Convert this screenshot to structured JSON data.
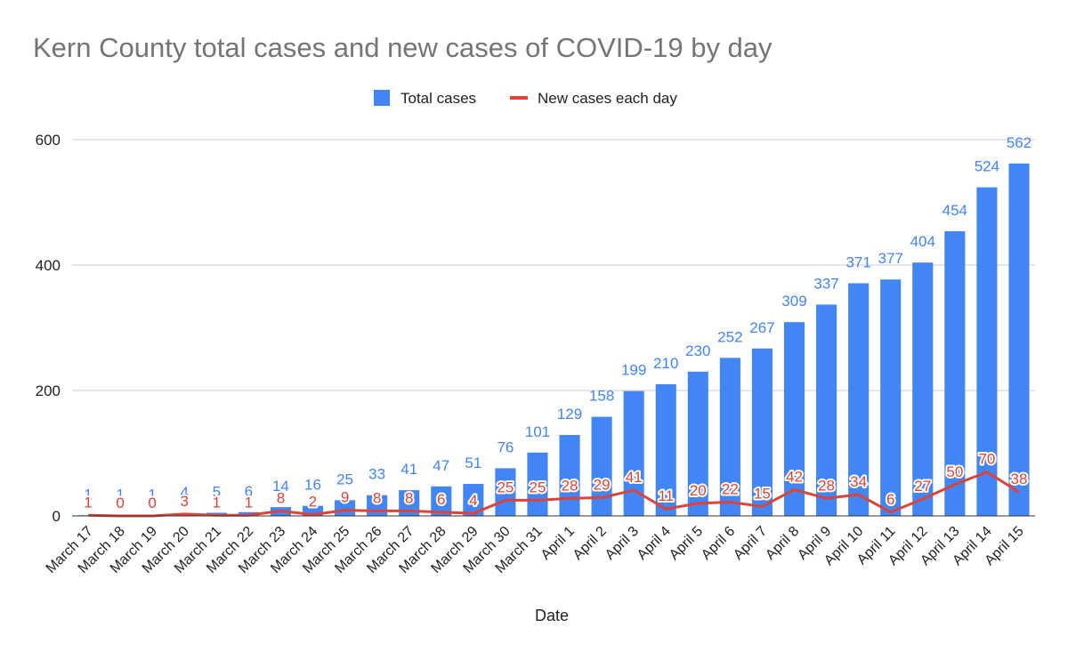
{
  "chart_data": {
    "type": "bar",
    "title": "Kern County total cases and new cases of COVID-19 by day",
    "xlabel": "Date",
    "ylabel": "",
    "ylim": [
      0,
      600
    ],
    "yticks": [
      0,
      200,
      400,
      600
    ],
    "grid": true,
    "legend_position": "top-center",
    "categories": [
      "March 17",
      "March 18",
      "March 19",
      "March 20",
      "March 21",
      "March 22",
      "March 23",
      "March 24",
      "March 25",
      "March 26",
      "March 27",
      "March 28",
      "March 29",
      "March 30",
      "March 31",
      "April 1",
      "April 2",
      "April 3",
      "April 4",
      "April 5",
      "April 6",
      "April 7",
      "April 8",
      "April 9",
      "April 10",
      "April 11",
      "April 12",
      "April 13",
      "April 14",
      "April 15"
    ],
    "series": [
      {
        "name": "Total cases",
        "type": "bar",
        "color": "#4285f4",
        "values": [
          1,
          1,
          1,
          4,
          5,
          6,
          14,
          16,
          25,
          33,
          41,
          47,
          51,
          76,
          101,
          129,
          158,
          199,
          210,
          230,
          252,
          267,
          309,
          337,
          371,
          377,
          404,
          454,
          524,
          562
        ]
      },
      {
        "name": "New cases each day",
        "type": "line",
        "color": "#db4437",
        "values": [
          1,
          0,
          0,
          3,
          1,
          1,
          8,
          2,
          9,
          8,
          8,
          6,
          4,
          25,
          25,
          28,
          29,
          41,
          11,
          20,
          22,
          15,
          42,
          28,
          34,
          6,
          27,
          50,
          70,
          38
        ]
      }
    ]
  }
}
